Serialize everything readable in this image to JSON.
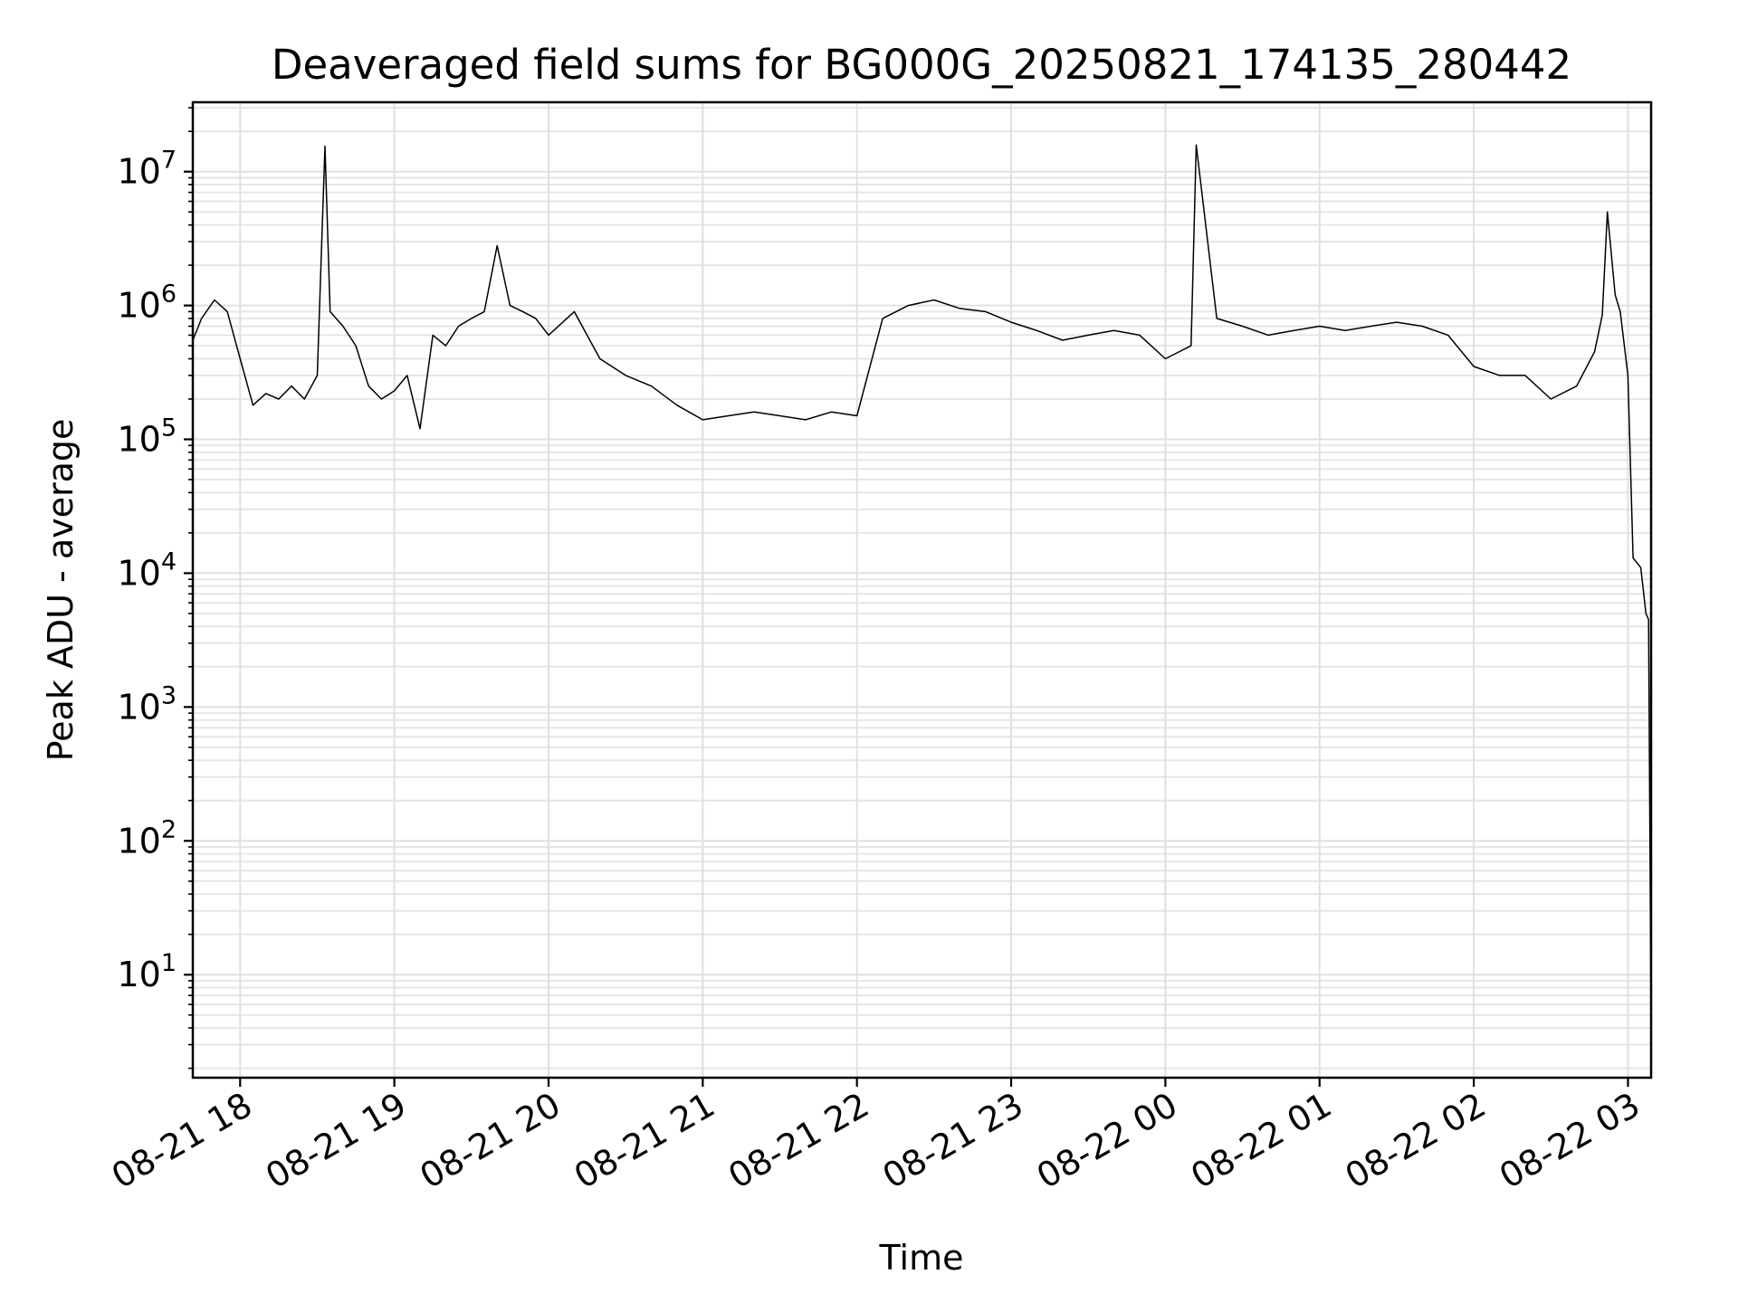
{
  "chart_data": {
    "type": "line",
    "title": "Deaveraged field sums for BG000G_20250821_174135_280442",
    "xlabel": "Time",
    "ylabel": "Peak ADU - average",
    "yscale": "log",
    "ylim": [
      1.7,
      33000000
    ],
    "xlim": [
      "2025-08-21 17:41:35",
      "2025-08-22 03:09:00"
    ],
    "grid": true,
    "legend": "none",
    "line_color": "#000000",
    "x_ticks": [
      "08-21 18",
      "08-21 19",
      "08-21 20",
      "08-21 21",
      "08-21 22",
      "08-21 23",
      "08-22 00",
      "08-22 01",
      "08-22 02",
      "08-22 03"
    ],
    "y_ticks": [
      {
        "base": "10",
        "exp": "1",
        "value": 10
      },
      {
        "base": "10",
        "exp": "2",
        "value": 100
      },
      {
        "base": "10",
        "exp": "3",
        "value": 1000
      },
      {
        "base": "10",
        "exp": "4",
        "value": 10000
      },
      {
        "base": "10",
        "exp": "5",
        "value": 100000
      },
      {
        "base": "10",
        "exp": "6",
        "value": 1000000
      },
      {
        "base": "10",
        "exp": "7",
        "value": 10000000
      }
    ],
    "series": [
      {
        "x": [
          "2025-08-21 17:41:35",
          "2025-08-21 17:45",
          "2025-08-21 17:50",
          "2025-08-21 17:55",
          "2025-08-21 18:00",
          "2025-08-21 18:05",
          "2025-08-21 18:10",
          "2025-08-21 18:15",
          "2025-08-21 18:20",
          "2025-08-21 18:25",
          "2025-08-21 18:30",
          "2025-08-21 18:33",
          "2025-08-21 18:35",
          "2025-08-21 18:40",
          "2025-08-21 18:45",
          "2025-08-21 18:50",
          "2025-08-21 18:55",
          "2025-08-21 19:00",
          "2025-08-21 19:05",
          "2025-08-21 19:10",
          "2025-08-21 19:15",
          "2025-08-21 19:20",
          "2025-08-21 19:25",
          "2025-08-21 19:30",
          "2025-08-21 19:35",
          "2025-08-21 19:40",
          "2025-08-21 19:45",
          "2025-08-21 19:50",
          "2025-08-21 19:55",
          "2025-08-21 20:00",
          "2025-08-21 20:10",
          "2025-08-21 20:20",
          "2025-08-21 20:30",
          "2025-08-21 20:40",
          "2025-08-21 20:50",
          "2025-08-21 21:00",
          "2025-08-21 21:10",
          "2025-08-21 21:20",
          "2025-08-21 21:30",
          "2025-08-21 21:40",
          "2025-08-21 21:50",
          "2025-08-21 22:00",
          "2025-08-21 22:10",
          "2025-08-21 22:20",
          "2025-08-21 22:30",
          "2025-08-21 22:40",
          "2025-08-21 22:50",
          "2025-08-21 23:00",
          "2025-08-21 23:10",
          "2025-08-21 23:20",
          "2025-08-21 23:30",
          "2025-08-21 23:40",
          "2025-08-21 23:50",
          "2025-08-22 00:00",
          "2025-08-22 00:10",
          "2025-08-22 00:12",
          "2025-08-22 00:20",
          "2025-08-22 00:30",
          "2025-08-22 00:40",
          "2025-08-22 00:50",
          "2025-08-22 01:00",
          "2025-08-22 01:10",
          "2025-08-22 01:20",
          "2025-08-22 01:30",
          "2025-08-22 01:40",
          "2025-08-22 01:50",
          "2025-08-22 02:00",
          "2025-08-22 02:10",
          "2025-08-22 02:20",
          "2025-08-22 02:30",
          "2025-08-22 02:40",
          "2025-08-22 02:47",
          "2025-08-22 02:50",
          "2025-08-22 02:52",
          "2025-08-22 02:55",
          "2025-08-22 02:57",
          "2025-08-22 03:00",
          "2025-08-22 03:02",
          "2025-08-22 03:05",
          "2025-08-22 03:07",
          "2025-08-22 03:08",
          "2025-08-22 03:09"
        ],
        "values": [
          550000,
          800000,
          1100000,
          900000,
          400000,
          180000,
          220000,
          200000,
          250000,
          200000,
          300000,
          15500000,
          900000,
          700000,
          500000,
          250000,
          200000,
          230000,
          300000,
          120000,
          600000,
          500000,
          700000,
          800000,
          900000,
          2800000,
          1000000,
          900000,
          800000,
          600000,
          900000,
          400000,
          300000,
          250000,
          180000,
          140000,
          150000,
          160000,
          150000,
          140000,
          160000,
          150000,
          800000,
          1000000,
          1100000,
          950000,
          900000,
          750000,
          650000,
          550000,
          600000,
          650000,
          600000,
          400000,
          500000,
          15800000,
          800000,
          700000,
          600000,
          650000,
          700000,
          650000,
          700000,
          750000,
          700000,
          600000,
          350000,
          300000,
          300000,
          200000,
          250000,
          450000,
          850000,
          5000000,
          1200000,
          900000,
          300000,
          13000,
          11000,
          5000,
          4500,
          4
        ]
      }
    ]
  }
}
